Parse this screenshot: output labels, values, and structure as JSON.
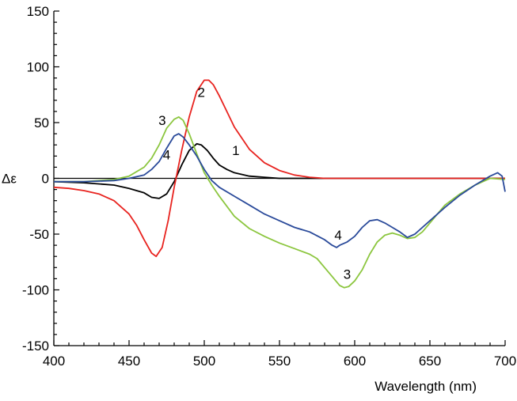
{
  "chart_data": {
    "type": "line",
    "title": "",
    "xlabel": "Wavelength (nm)",
    "ylabel": "Δε",
    "xlim": [
      400,
      700
    ],
    "ylim": [
      -150,
      150
    ],
    "xticks": [
      400,
      450,
      500,
      550,
      600,
      650,
      700
    ],
    "yticks": [
      -150,
      -100,
      -50,
      0,
      50,
      100,
      150
    ],
    "xtick_labels": [
      "400",
      "450",
      "500",
      "550",
      "600",
      "650",
      "700"
    ],
    "ytick_labels": [
      "-150",
      "-100",
      "-50",
      "0",
      "50",
      "100",
      "150"
    ],
    "grid": false,
    "legend": "none",
    "zero_line": true,
    "series": [
      {
        "name": "1",
        "color": "#000000",
        "x": [
          400,
          420,
          440,
          450,
          460,
          465,
          470,
          475,
          480,
          485,
          490,
          495,
          498,
          502,
          506,
          510,
          515,
          520,
          530,
          540,
          550,
          560,
          570,
          600,
          650,
          700
        ],
        "y": [
          -3,
          -4,
          -6,
          -9,
          -13,
          -17,
          -18,
          -14,
          -3,
          12,
          25,
          31,
          30,
          25,
          18,
          12,
          8,
          5,
          2,
          1,
          0,
          0,
          0,
          0,
          0,
          0
        ]
      },
      {
        "name": "2",
        "color": "#e8231f",
        "x": [
          400,
          410,
          420,
          430,
          440,
          450,
          455,
          460,
          465,
          468,
          472,
          476,
          480,
          485,
          490,
          495,
          500,
          503,
          506,
          510,
          515,
          520,
          530,
          540,
          550,
          560,
          570,
          580,
          600,
          650,
          700
        ],
        "y": [
          -8,
          -9,
          -11,
          -14,
          -20,
          -32,
          -42,
          -55,
          -67,
          -70,
          -62,
          -38,
          -8,
          25,
          55,
          78,
          88,
          88,
          84,
          74,
          60,
          46,
          26,
          14,
          7,
          3,
          1,
          0,
          0,
          0,
          0
        ]
      },
      {
        "name": "3",
        "color": "#8cc63f",
        "x": [
          400,
          420,
          440,
          450,
          460,
          465,
          470,
          475,
          480,
          483,
          486,
          490,
          495,
          500,
          505,
          510,
          520,
          530,
          540,
          550,
          560,
          570,
          575,
          580,
          585,
          590,
          593,
          596,
          600,
          605,
          610,
          615,
          620,
          625,
          630,
          635,
          640,
          645,
          650,
          655,
          660,
          670,
          680,
          690,
          700
        ],
        "y": [
          -3,
          -3,
          -1,
          2,
          10,
          18,
          30,
          45,
          53,
          55,
          52,
          40,
          22,
          5,
          -6,
          -16,
          -34,
          -45,
          -52,
          -58,
          -63,
          -68,
          -72,
          -80,
          -88,
          -96,
          -98,
          -97,
          -92,
          -82,
          -68,
          -57,
          -51,
          -49,
          -51,
          -54,
          -53,
          -48,
          -40,
          -32,
          -24,
          -14,
          -6,
          0,
          -1
        ]
      },
      {
        "name": "4",
        "color": "#2a4a9a",
        "x": [
          400,
          420,
          440,
          450,
          460,
          465,
          470,
          475,
          480,
          483,
          486,
          490,
          495,
          500,
          505,
          510,
          520,
          530,
          540,
          550,
          560,
          570,
          580,
          585,
          588,
          590,
          595,
          600,
          605,
          610,
          615,
          620,
          625,
          630,
          635,
          640,
          650,
          660,
          670,
          680,
          690,
          695,
          698,
          700
        ],
        "y": [
          -3,
          -3,
          -2,
          0,
          3,
          8,
          15,
          27,
          38,
          40,
          37,
          30,
          20,
          8,
          -2,
          -8,
          -16,
          -24,
          -32,
          -38,
          -44,
          -48,
          -55,
          -60,
          -62,
          -60,
          -57,
          -52,
          -44,
          -38,
          -37,
          -40,
          -44,
          -48,
          -53,
          -50,
          -38,
          -26,
          -15,
          -6,
          2,
          5,
          2,
          -12
        ]
      }
    ],
    "annotations": [
      {
        "text": "1",
        "x": 521,
        "y": 21
      },
      {
        "text": "2",
        "x": 498,
        "y": 73
      },
      {
        "text": "3",
        "x": 472,
        "y": 48
      },
      {
        "text": "4",
        "x": 475,
        "y": 17
      },
      {
        "text": "4",
        "x": 589,
        "y": -55
      },
      {
        "text": "3",
        "x": 595,
        "y": -90
      }
    ]
  }
}
